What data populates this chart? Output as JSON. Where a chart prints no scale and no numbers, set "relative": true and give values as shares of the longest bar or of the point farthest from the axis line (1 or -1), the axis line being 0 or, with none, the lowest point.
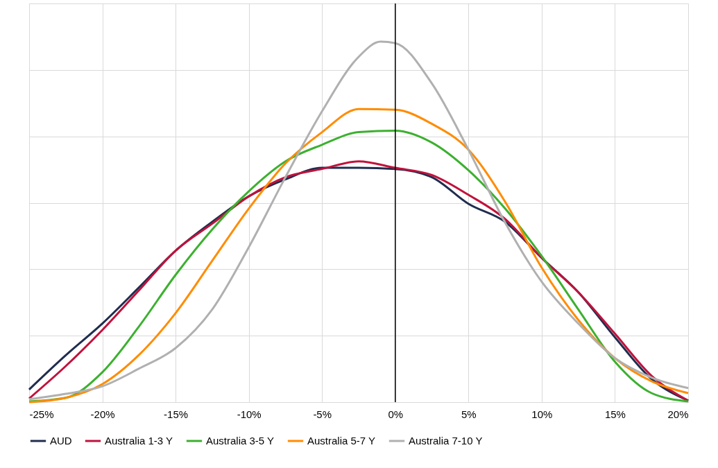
{
  "chart_data": {
    "type": "line",
    "relative": true,
    "x": [
      -25,
      -22.5,
      -20,
      -17.5,
      -15,
      -12.5,
      -10,
      -7.5,
      -5,
      -2.5,
      0,
      2.5,
      5,
      7.5,
      10,
      12.5,
      15,
      17.5,
      20
    ],
    "xlim": [
      -25,
      20
    ],
    "xticks": [
      {
        "value": -25,
        "label": "-25%"
      },
      {
        "value": -20,
        "label": "-20%"
      },
      {
        "value": -15,
        "label": "-15%"
      },
      {
        "value": -10,
        "label": "-10%"
      },
      {
        "value": -5,
        "label": "-5%"
      },
      {
        "value": 0,
        "label": "0%"
      },
      {
        "value": 5,
        "label": "5%"
      },
      {
        "value": 10,
        "label": "10%"
      },
      {
        "value": 15,
        "label": "15%"
      },
      {
        "value": 20,
        "label": "20%"
      }
    ],
    "series": [
      {
        "name": "AUD",
        "color": "#1f2d4e",
        "values": [
          0.035,
          0.13,
          0.218,
          0.318,
          0.42,
          0.5,
          0.571,
          0.618,
          0.65,
          0.65,
          0.647,
          0.624,
          0.55,
          0.5,
          0.4,
          0.305,
          0.18,
          0.064,
          0.004
        ]
      },
      {
        "name": "Australia 1-3 Y",
        "color": "#c0123c",
        "values": [
          0.01,
          0.1,
          0.2,
          0.31,
          0.42,
          0.495,
          0.571,
          0.624,
          0.647,
          0.668,
          0.65,
          0.63,
          0.575,
          0.508,
          0.4,
          0.305,
          0.19,
          0.073,
          0.004
        ]
      },
      {
        "name": "Australia 3-5 Y",
        "color": "#3cb02f",
        "values": [
          0.002,
          0.012,
          0.083,
          0.21,
          0.353,
          0.479,
          0.585,
          0.668,
          0.714,
          0.749,
          0.753,
          0.72,
          0.643,
          0.537,
          0.405,
          0.257,
          0.112,
          0.025,
          0.002
        ]
      },
      {
        "name": "Australia 5-7 Y",
        "color": "#ff8c00",
        "values": [
          0,
          0.012,
          0.05,
          0.131,
          0.247,
          0.392,
          0.537,
          0.662,
          0.749,
          0.813,
          0.811,
          0.772,
          0.7,
          0.556,
          0.373,
          0.228,
          0.122,
          0.058,
          0.025
        ]
      },
      {
        "name": "Australia 7-10 Y",
        "color": "#b0b0b0",
        "x": [
          -25,
          -22.5,
          -20,
          -17.5,
          -15,
          -12.5,
          -10,
          -7.5,
          -5,
          -2.5,
          -1,
          0,
          2.5,
          5,
          7.5,
          10,
          12.5,
          15,
          17.5,
          20
        ],
        "values": [
          0.008,
          0.023,
          0.044,
          0.093,
          0.15,
          0.257,
          0.43,
          0.624,
          0.807,
          0.958,
          1.0,
          0.996,
          0.884,
          0.7,
          0.498,
          0.334,
          0.218,
          0.122,
          0.068,
          0.039
        ]
      }
    ],
    "ref_lines": [
      {
        "axis": "x",
        "value": 0,
        "color": "#000000"
      }
    ],
    "grid": true,
    "legend": "bottom",
    "line_style": "solid"
  }
}
